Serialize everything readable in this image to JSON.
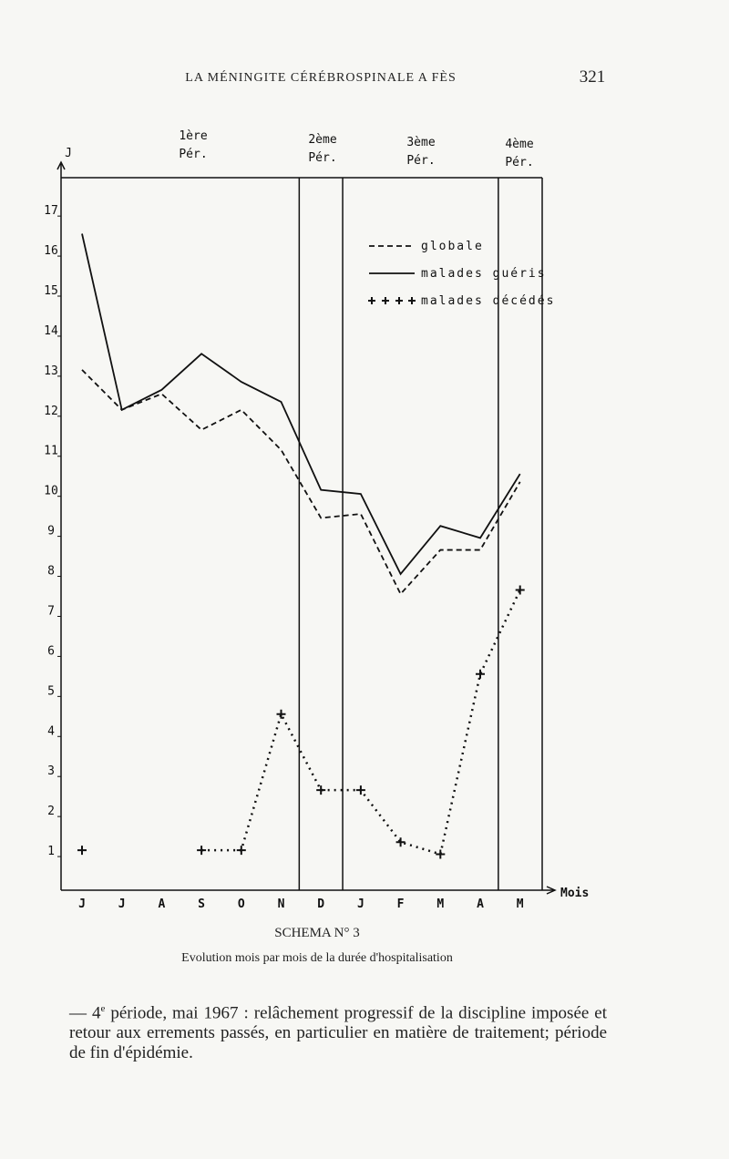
{
  "header": {
    "running_title": "LA MÉNINGITE CÉRÉBROSPINALE A FÈS",
    "page_number": "321"
  },
  "chart_data": {
    "type": "line",
    "y_label": "J",
    "x_label": "Mois",
    "categories": [
      "J",
      "J",
      "A",
      "S",
      "O",
      "N",
      "D",
      "J",
      "F",
      "M",
      "A",
      "M"
    ],
    "ylim": [
      0,
      17.8
    ],
    "yticks": [
      1,
      2,
      3,
      4,
      5,
      6,
      7,
      8,
      9,
      10,
      11,
      12,
      13,
      14,
      15,
      16,
      17
    ],
    "periods": [
      [
        "1ère",
        "Pér."
      ],
      [
        "2ème",
        "Pér."
      ],
      [
        "3ème",
        "Pér."
      ],
      [
        "4ème",
        "Pér."
      ]
    ],
    "series": [
      {
        "name": "globale",
        "color": "#111111",
        "style": "dashed",
        "values": [
          13.0,
          12.0,
          12.4,
          11.5,
          12.0,
          11.0,
          9.3,
          9.4,
          7.4,
          8.5,
          8.5,
          10.2
        ]
      },
      {
        "name": "malades guéris",
        "color": "#111111",
        "style": "solid",
        "values": [
          16.4,
          12.0,
          12.5,
          13.4,
          12.7,
          12.2,
          10.0,
          9.9,
          7.9,
          9.1,
          8.8,
          10.4
        ]
      },
      {
        "name": "malades décédés",
        "color": "#111111",
        "style": "crosses",
        "values": [
          1.0,
          null,
          null,
          1.0,
          1.0,
          4.4,
          2.5,
          2.5,
          1.2,
          0.9,
          5.4,
          7.5
        ]
      }
    ]
  },
  "caption": {
    "title": "SCHEMA N° 3",
    "text": "Evolution mois par mois de la durée d'hospitalisation"
  },
  "paragraph": {
    "lead": "— 4",
    "sup": "e",
    "text": " période, mai 1967 : relâchement progressif de la discipline imposée et retour aux errements passés, en particulier en matière de traitement; période de fin d'épidémie."
  }
}
